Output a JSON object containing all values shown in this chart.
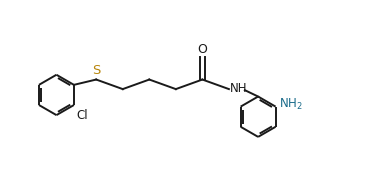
{
  "bg_color": "#ffffff",
  "line_color": "#1a1a1a",
  "S_color": "#b8860b",
  "NH2_color": "#1a6b8a",
  "figsize": [
    3.73,
    1.92
  ],
  "dpi": 100,
  "lw": 1.4,
  "ring_r": 0.38,
  "xlim": [
    0.0,
    7.0
  ],
  "ylim": [
    -1.1,
    1.3
  ]
}
